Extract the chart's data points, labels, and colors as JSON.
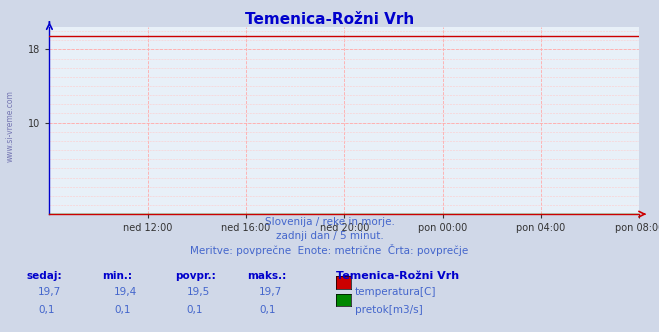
{
  "title": "Temenica-Rožni Vrh",
  "title_color": "#0000cc",
  "title_fontsize": 11,
  "bg_color": "#d0d8e8",
  "plot_bg_color": "#e8f0f8",
  "grid_color": "#ffaaaa",
  "grid_minor_color": "#ffcccc",
  "temp_value": 19.5,
  "flow_value": 0.05,
  "ylim": [
    0,
    20.5
  ],
  "ytick_positions": [
    10,
    18
  ],
  "ytick_labels": [
    "10",
    "18"
  ],
  "x_tick_labels": [
    "ned 12:00",
    "ned 16:00",
    "ned 20:00",
    "pon 00:00",
    "pon 04:00",
    "pon 08:00"
  ],
  "x_tick_fracs": [
    0.167,
    0.333,
    0.5,
    0.667,
    0.833,
    1.0
  ],
  "n_points": 289,
  "temp_color": "#cc0000",
  "flow_color": "#008800",
  "left_spine_color": "#0000cc",
  "bottom_spine_color": "#cc0000",
  "watermark": "www.si-vreme.com",
  "subtitle1": "Slovenija / reke in morje.",
  "subtitle2": "zadnji dan / 5 minut.",
  "subtitle3": "Meritve: povprečne  Enote: metrične  Črta: povprečje",
  "subtitle_color": "#4466cc",
  "legend_title": "Temenica-Rožni Vrh",
  "legend_title_color": "#0000cc",
  "legend_items": [
    {
      "label": "temperatura[C]",
      "color": "#cc0000"
    },
    {
      "label": "pretok[m3/s]",
      "color": "#008800"
    }
  ],
  "table_headers": [
    "sedaj:",
    "min.:",
    "povpr.:",
    "maks.:"
  ],
  "table_row1": [
    "19,7",
    "19,4",
    "19,5",
    "19,7"
  ],
  "table_row2": [
    "0,1",
    "0,1",
    "0,1",
    "0,1"
  ],
  "table_color": "#4466cc",
  "table_header_color": "#0000cc",
  "table_bold": true
}
